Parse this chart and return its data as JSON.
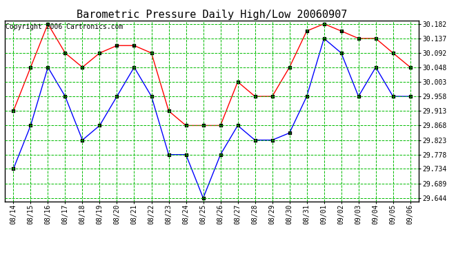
{
  "title": "Barometric Pressure Daily High/Low 20060907",
  "copyright": "Copyright 2006 Cartronics.com",
  "x_labels": [
    "08/14",
    "08/15",
    "08/16",
    "08/17",
    "08/18",
    "08/19",
    "08/20",
    "08/21",
    "08/22",
    "08/23",
    "08/24",
    "08/25",
    "08/26",
    "08/27",
    "08/28",
    "08/29",
    "08/30",
    "08/31",
    "09/01",
    "09/02",
    "09/03",
    "09/04",
    "09/05",
    "09/06"
  ],
  "high_values": [
    29.913,
    30.048,
    30.182,
    30.092,
    30.048,
    30.092,
    30.115,
    30.115,
    30.092,
    29.913,
    29.868,
    29.868,
    29.868,
    30.003,
    29.958,
    29.958,
    30.048,
    30.16,
    30.182,
    30.16,
    30.137,
    30.137,
    30.092,
    30.048
  ],
  "low_values": [
    29.734,
    29.868,
    30.048,
    29.958,
    29.823,
    29.868,
    29.958,
    30.048,
    29.958,
    29.778,
    29.778,
    29.644,
    29.778,
    29.868,
    29.823,
    29.823,
    29.845,
    29.958,
    30.137,
    30.092,
    29.958,
    30.048,
    29.958,
    29.958
  ],
  "high_color": "#ff0000",
  "low_color": "#0000ff",
  "grid_major_color": "#00bb00",
  "grid_minor_color": "#00bb00",
  "bg_color": "#ffffff",
  "plot_bg_color": "#ffffff",
  "marker": "s",
  "marker_size": 2.5,
  "marker_color": "#000000",
  "linewidth": 1.0,
  "ylim_min": 29.644,
  "ylim_max": 30.182,
  "ytick_values": [
    29.644,
    29.689,
    29.734,
    29.778,
    29.823,
    29.868,
    29.913,
    29.958,
    30.003,
    30.048,
    30.092,
    30.137,
    30.182
  ],
  "title_fontsize": 11,
  "copyright_fontsize": 7,
  "tick_fontsize": 7,
  "label_fontsize": 7
}
